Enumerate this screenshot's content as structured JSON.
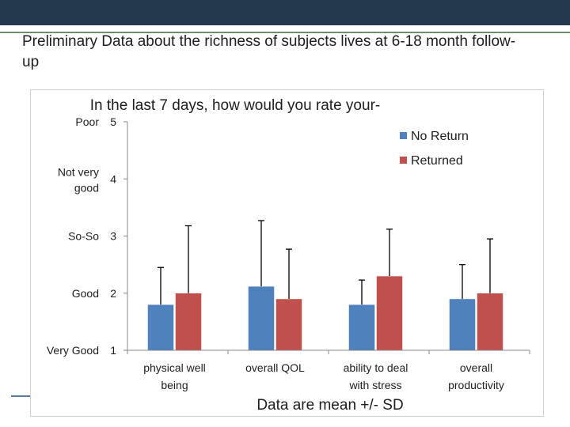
{
  "slide": {
    "title": "Preliminary Data about the richness of subjects lives at 6-18 month follow-up"
  },
  "colors": {
    "topbar": "#243a4a",
    "accent_line": "#6d8f6a",
    "no_return": "#4f81bd",
    "returned": "#c0504d"
  },
  "chart_data": {
    "type": "bar",
    "title": "In the last 7 days, how would you rate your-",
    "caption": "Data are mean +/- SD",
    "categories": [
      "physical well being",
      "overall QOL",
      "ability to deal with stress",
      "overall productivity"
    ],
    "series": [
      {
        "name": "No Return",
        "values": [
          1.8,
          2.12,
          1.8,
          1.9
        ],
        "sd": [
          0.65,
          1.15,
          0.43,
          0.6
        ]
      },
      {
        "name": "Returned",
        "values": [
          2.0,
          1.9,
          2.3,
          2.0
        ],
        "sd": [
          1.18,
          0.87,
          0.82,
          0.95
        ]
      }
    ],
    "ylim": [
      1,
      5
    ],
    "yticks": [
      {
        "value": 5,
        "number": "5",
        "label": "Poor"
      },
      {
        "value": 4,
        "number": "4",
        "label": "Not very good"
      },
      {
        "value": 3,
        "number": "3",
        "label": "So-So"
      },
      {
        "value": 2,
        "number": "2",
        "label": "Good"
      },
      {
        "value": 1,
        "number": "1",
        "label": "Very Good"
      }
    ],
    "legend_position": "top-right",
    "grid": false,
    "error_bars": "upper"
  }
}
